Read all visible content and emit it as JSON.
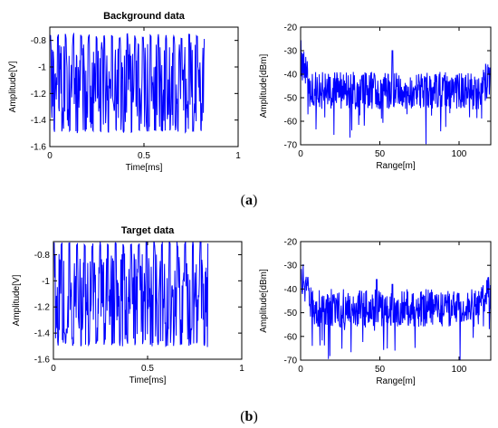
{
  "figure": {
    "caption_a": {
      "open": "(",
      "letter": "a",
      "close": ")"
    },
    "caption_b": {
      "open": "(",
      "letter": "b",
      "close": ")"
    },
    "line_color": "#0000ff"
  },
  "chart_data": [
    {
      "id": "a-time",
      "type": "line",
      "title": "Background data",
      "xlabel": "Time[ms]",
      "ylabel": "Amplitude[V]",
      "xlim": [
        0,
        1
      ],
      "ylim": [
        -1.6,
        -0.7
      ],
      "xticks": [
        0,
        0.5,
        1
      ],
      "xticklabels": [
        "0",
        "0.5",
        "1"
      ],
      "yticks": [
        -1.6,
        -1.4,
        -1.2,
        -1,
        -0.8
      ],
      "yticklabels": [
        "-1.6",
        "-1.4",
        "-1.2",
        "-1",
        "-0.8"
      ],
      "signal": {
        "x_range": [
          0,
          0.82
        ],
        "y_min": -1.5,
        "y_max": -0.75,
        "center": -1.15
      }
    },
    {
      "id": "a-range",
      "type": "line",
      "title": "",
      "xlabel": "Range[m]",
      "ylabel": "Amplitude[dBm]",
      "xlim": [
        0,
        120
      ],
      "ylim": [
        -70,
        -20
      ],
      "xticks": [
        0,
        50,
        100
      ],
      "xticklabels": [
        "0",
        "50",
        "100"
      ],
      "yticks": [
        -70,
        -60,
        -50,
        -40,
        -30,
        -20
      ],
      "yticklabels": [
        "-70",
        "-60",
        "-50",
        "-40",
        "-30",
        "-20"
      ],
      "spectrum": {
        "floor": -47,
        "peaks": [
          {
            "x": 58,
            "y": -30
          }
        ]
      }
    },
    {
      "id": "b-time",
      "type": "line",
      "title": "Target data",
      "xlabel": "Time[ms]",
      "ylabel": "Amplitude[V]",
      "xlim": [
        0,
        1
      ],
      "ylim": [
        -1.6,
        -0.7
      ],
      "xticks": [
        0,
        0.5,
        1
      ],
      "xticklabels": [
        "0",
        "0.5",
        "1"
      ],
      "yticks": [
        -1.6,
        -1.4,
        -1.2,
        -1,
        -0.8
      ],
      "yticklabels": [
        "-1.6",
        "-1.4",
        "-1.2",
        "-1",
        "-0.8"
      ],
      "signal": {
        "x_range": [
          0,
          0.82
        ],
        "y_min": -1.5,
        "y_max": -0.7,
        "center": -1.15
      }
    },
    {
      "id": "b-range",
      "type": "line",
      "title": "",
      "xlabel": "Range[m]",
      "ylabel": "Amplitude[dBm]",
      "xlim": [
        0,
        120
      ],
      "ylim": [
        -70,
        -20
      ],
      "xticks": [
        0,
        50,
        100
      ],
      "xticklabels": [
        "0",
        "50",
        "100"
      ],
      "yticks": [
        -70,
        -60,
        -50,
        -40,
        -30,
        -20
      ],
      "yticklabels": [
        "-70",
        "-60",
        "-50",
        "-40",
        "-30",
        "-20"
      ],
      "spectrum": {
        "floor": -48,
        "peaks": [
          {
            "x": 48,
            "y": -36
          },
          {
            "x": 58,
            "y": -38
          }
        ]
      }
    }
  ]
}
